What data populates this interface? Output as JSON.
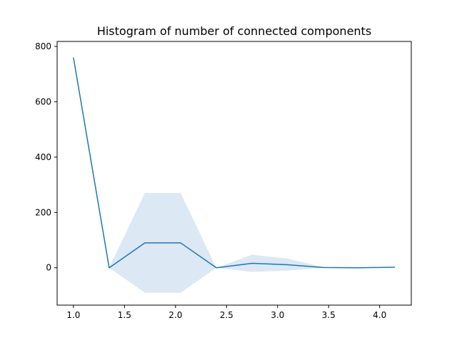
{
  "chart_data": {
    "type": "line",
    "title": "Histogram of number of connected components",
    "xlabel": "",
    "ylabel": "",
    "xlim": [
      0.84,
      4.31
    ],
    "ylim": [
      -135,
      818
    ],
    "xticks": [
      1.0,
      1.5,
      2.0,
      2.5,
      3.0,
      3.5,
      4.0
    ],
    "xtick_labels": [
      "1.0",
      "1.5",
      "2.0",
      "2.5",
      "3.0",
      "3.5",
      "4.0"
    ],
    "yticks": [
      0,
      200,
      400,
      600,
      800
    ],
    "ytick_labels": [
      "0",
      "200",
      "400",
      "600",
      "800"
    ],
    "grid": false,
    "series": [
      {
        "x": [
          1.0,
          1.35,
          1.7,
          2.05,
          2.4,
          2.75,
          3.1,
          3.45,
          3.8,
          4.15
        ],
        "values": [
          760,
          0,
          90,
          90,
          0,
          16,
          11,
          1,
          0,
          2
        ],
        "band_upper": [
          760,
          0,
          270,
          270,
          0,
          47,
          33,
          2,
          0,
          3
        ],
        "band_lower": [
          760,
          0,
          -90,
          -90,
          0,
          -15,
          -10,
          0,
          0,
          1
        ],
        "color": "#1f77b4",
        "band_color": "#dce8f3"
      }
    ]
  }
}
